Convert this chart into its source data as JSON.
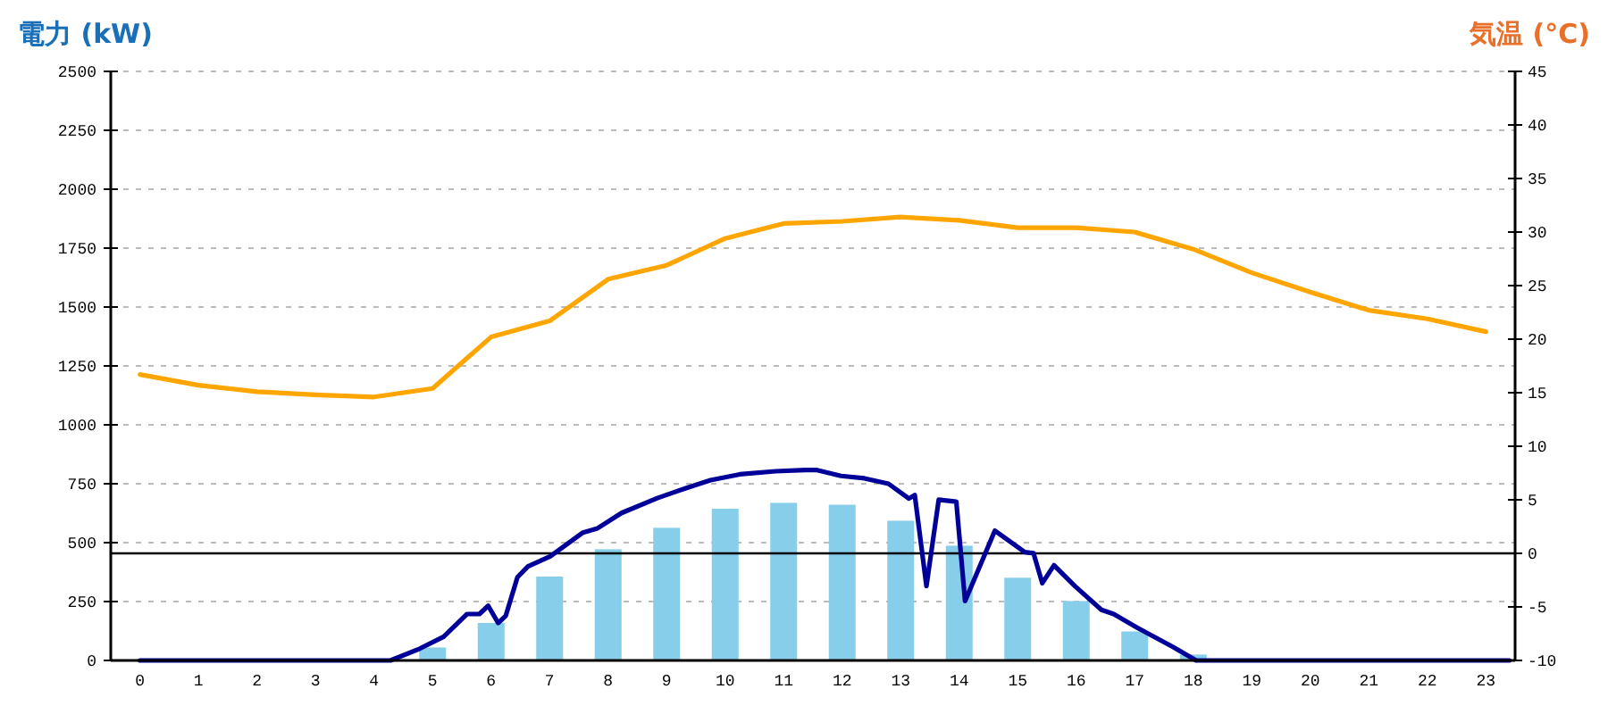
{
  "chart_data": {
    "type": "bar",
    "ylabel": "電力 (kW)",
    "y2label": "気温 (°C)",
    "x": [
      0,
      1,
      2,
      3,
      4,
      5,
      6,
      7,
      8,
      9,
      10,
      11,
      12,
      13,
      14,
      15,
      16,
      17,
      18,
      19,
      20,
      21,
      22,
      23
    ],
    "xlim": [
      -0.5,
      23.5
    ],
    "xticks": [
      0,
      1,
      2,
      3,
      4,
      5,
      6,
      7,
      8,
      9,
      10,
      11,
      12,
      13,
      14,
      15,
      16,
      17,
      18,
      19,
      20,
      21,
      22,
      23
    ],
    "series": [
      {
        "color": "#87ceeb",
        "values": [
          0,
          0,
          0,
          0,
          0,
          55,
          159,
          356,
          472,
          563,
          644,
          669,
          661,
          593,
          487,
          351,
          252,
          123,
          25,
          0,
          0,
          0,
          0,
          0
        ]
      },
      {
        "type": "line",
        "color": "#000099",
        "x": [
          0,
          4.28,
          4.78,
          5.19,
          5.59,
          5.8,
          5.95,
          6.12,
          6.25,
          6.45,
          6.63,
          7.01,
          7.57,
          7.82,
          8.23,
          8.84,
          9.34,
          9.75,
          10.25,
          10.86,
          11.37,
          11.57,
          11.98,
          12.38,
          12.79,
          13.14,
          13.24,
          13.44,
          13.65,
          13.95,
          14.1,
          14.61,
          15.12,
          15.27,
          15.42,
          15.62,
          15.98,
          16.43,
          16.64,
          17.04,
          17.65,
          18.05,
          23.4
        ],
        "values": [
          0,
          0,
          50,
          101,
          197,
          197,
          232,
          159,
          189,
          353,
          399,
          442,
          543,
          561,
          626,
          689,
          732,
          765,
          790,
          803,
          808,
          808,
          783,
          773,
          750,
          687,
          702,
          316,
          682,
          674,
          252,
          551,
          460,
          455,
          328,
          404,
          315,
          215,
          197,
          139,
          58,
          0,
          0
        ]
      },
      {
        "type": "line",
        "axis": "y2",
        "color": "#ffa500",
        "values": [
          16.7,
          15.7,
          15.1,
          14.8,
          14.6,
          15.4,
          20.2,
          21.7,
          25.6,
          26.9,
          29.4,
          30.8,
          31,
          31.4,
          31.1,
          30.4,
          30.4,
          30,
          28.4,
          26.2,
          24.4,
          22.7,
          21.9,
          20.7
        ]
      }
    ],
    "ylim": [
      0,
      2500
    ],
    "yticks": [
      0,
      250,
      500,
      750,
      1000,
      1250,
      1500,
      1750,
      2000,
      2250,
      2500
    ],
    "y2lim": [
      -10,
      45
    ],
    "y2ticks": [
      -10,
      -5,
      0,
      5,
      10,
      15,
      20,
      25,
      30,
      35,
      40,
      45
    ],
    "ref_lines": [
      {
        "axis": "y2",
        "value": 0,
        "color": "#000000"
      }
    ],
    "grid": "y"
  }
}
